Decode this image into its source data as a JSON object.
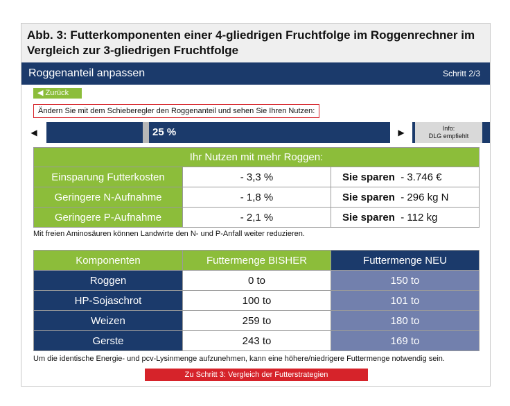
{
  "figure": {
    "title": "Abb. 3: Futterkomponenten einer 4-gliedrigen Fruchtfolge im Roggenrechner im Vergleich zur 3-gliedrigen Fruchtfolge"
  },
  "header": {
    "title": "Roggenanteil anpassen",
    "step": "Schritt 2/3"
  },
  "back_button": {
    "icon": "triangle-left-icon",
    "label": "◀ Zurück"
  },
  "instruction": "Ändern Sie mit dem Schieberegler den Roggenanteil und sehen Sie Ihren Nutzen:",
  "slider": {
    "left_arrow": "◀",
    "right_arrow": "▶",
    "value_label": "25 %",
    "value_percent": 25,
    "info_line1": "Info:",
    "info_line2": "DLG empfiehlt"
  },
  "benefit": {
    "header": "Ihr Nutzen mit mehr Roggen:",
    "rows": [
      {
        "label": "Einsparung Futterkosten",
        "percent": "- 3,3 %",
        "save_label": "Sie sparen",
        "save_value": "- 3.746 €"
      },
      {
        "label": "Geringere N-Aufnahme",
        "percent": "- 1,8 %",
        "save_label": "Sie sparen",
        "save_value": "- 296 kg N"
      },
      {
        "label": "Geringere P-Aufnahme",
        "percent": "- 2,1 %",
        "save_label": "Sie sparen",
        "save_value": "- 112 kg"
      }
    ]
  },
  "note1": "Mit freien Aminosäuren können Landwirte den N- und P-Anfall weiter reduzieren.",
  "components": {
    "headers": [
      "Komponenten",
      "Futtermenge BISHER",
      "Futtermenge NEU"
    ],
    "rows": [
      {
        "name": "Roggen",
        "old": "0 to",
        "new": "150 to"
      },
      {
        "name": "HP-Sojaschrot",
        "old": "100 to",
        "new": "101 to"
      },
      {
        "name": "Weizen",
        "old": "259 to",
        "new": "180 to"
      },
      {
        "name": "Gerste",
        "old": "243 to",
        "new": "169 to"
      }
    ]
  },
  "note2": "Um die identische Energie- und pcv-Lysinmenge aufzunehmen, kann eine höhere/niedrigere Futtermenge notwendig sein.",
  "next_button": "Zu Schritt 3: Vergleich der Futterstrategien",
  "colors": {
    "navy": "#1b3a6b",
    "green": "#8cbd3a",
    "periwinkle": "#7280ad",
    "red": "#d6232a"
  }
}
